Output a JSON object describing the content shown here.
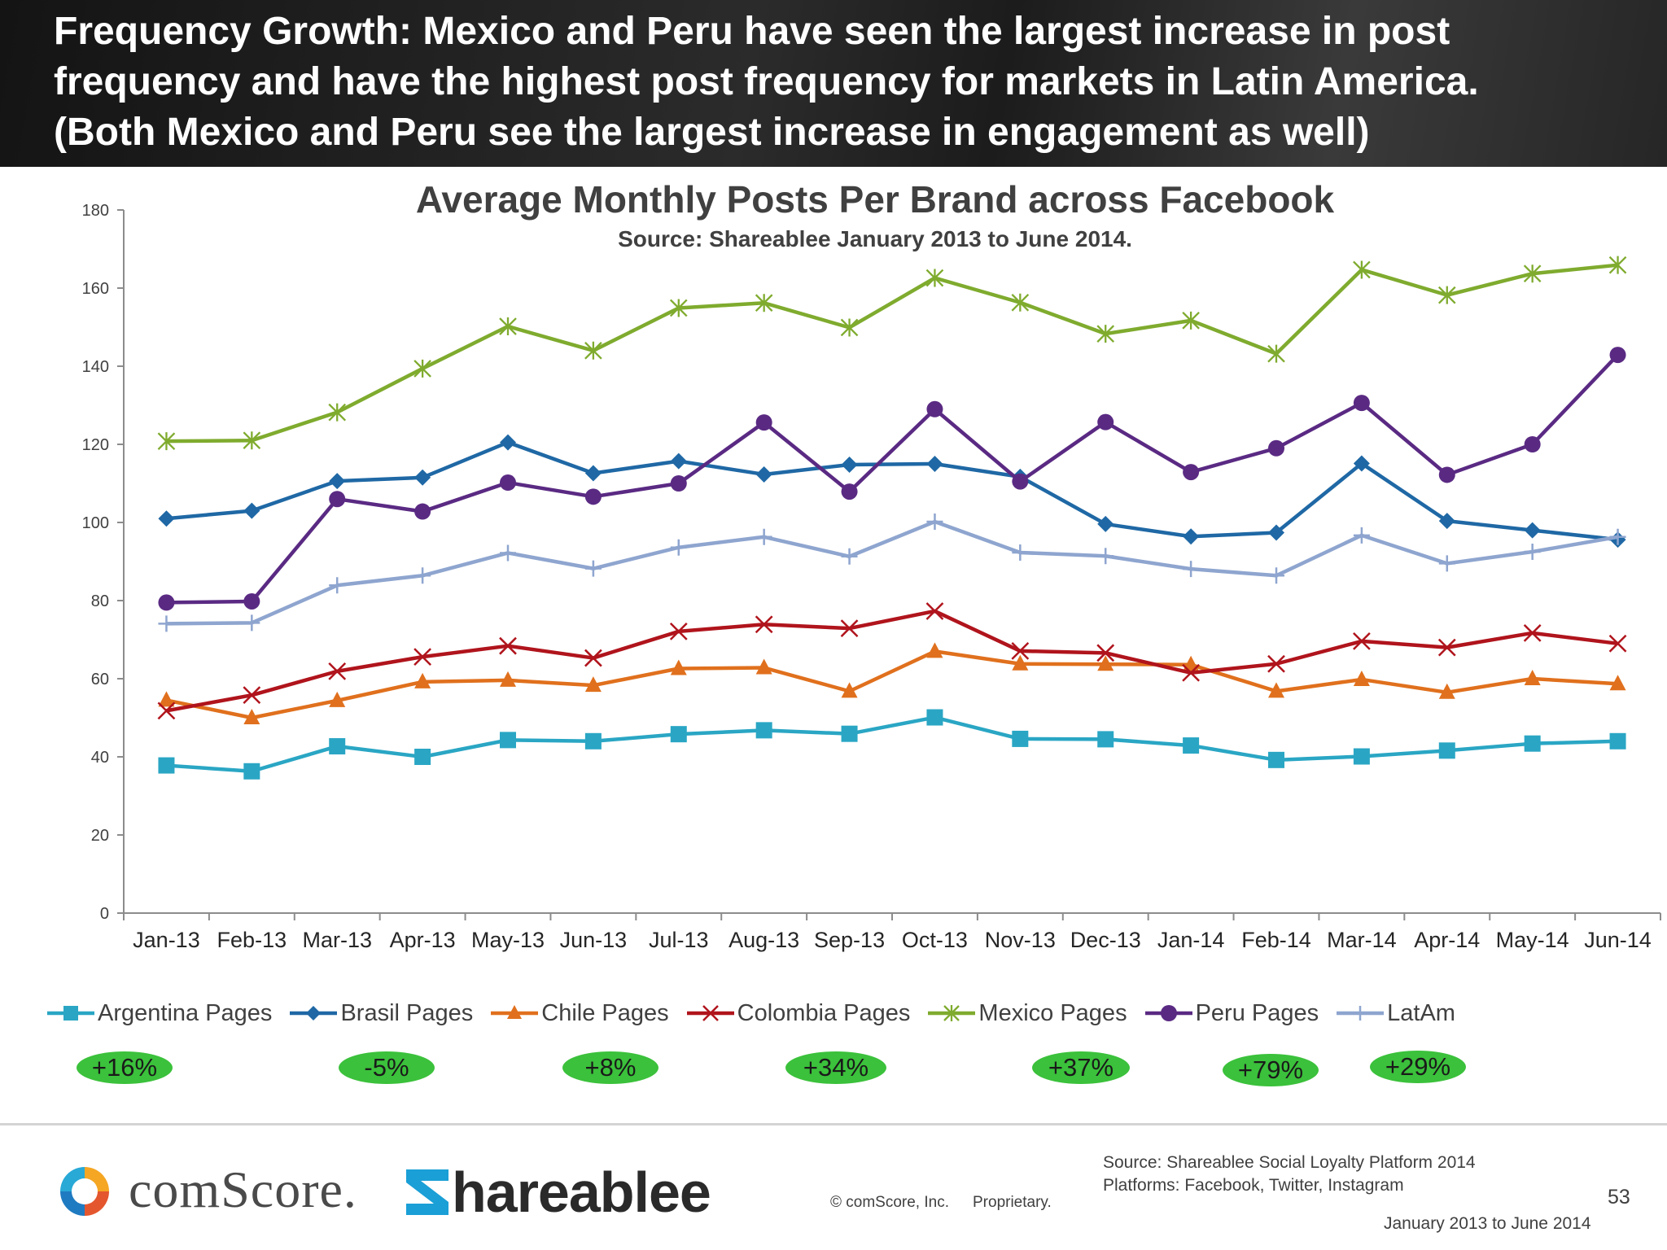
{
  "header": {
    "title": "Frequency Growth: Mexico and Peru have seen the largest increase in post\nfrequency and have the highest post frequency for markets in Latin America.\n(Both Mexico and Peru see the largest increase in engagement as well)"
  },
  "chart_data": {
    "type": "line",
    "title": "Average Monthly Posts Per Brand across Facebook",
    "subtitle": "Source: Shareablee January 2013 to June 2014.",
    "xlabel": "",
    "ylabel": "",
    "ylim": [
      0,
      180
    ],
    "yticks": [
      0,
      20,
      40,
      60,
      80,
      100,
      120,
      140,
      160,
      180
    ],
    "grid": false,
    "legend_position": "bottom",
    "categories": [
      "Jan-13",
      "Feb-13",
      "Mar-13",
      "Apr-13",
      "May-13",
      "Jun-13",
      "Jul-13",
      "Aug-13",
      "Sep-13",
      "Oct-13",
      "Nov-13",
      "Dec-13",
      "Jan-14",
      "Feb-14",
      "Mar-14",
      "Apr-14",
      "May-14",
      "Jun-14"
    ],
    "series": [
      {
        "name": "Argentina Pages",
        "color": "#2aa6c4",
        "marker": "square",
        "values": [
          37.8,
          36.3,
          42.7,
          40,
          44.3,
          44,
          45.8,
          46.8,
          45.9,
          50.1,
          44.6,
          44.5,
          42.9,
          39.2,
          40.1,
          41.6,
          43.4,
          44
        ]
      },
      {
        "name": "Brasil Pages",
        "color": "#1f68a5",
        "marker": "diamond",
        "values": [
          101,
          103,
          110.6,
          111.5,
          120.5,
          112.6,
          115.7,
          112.3,
          114.8,
          115,
          111.7,
          99.6,
          96.4,
          97.4,
          115.1,
          100.4,
          98,
          95.6
        ]
      },
      {
        "name": "Chile Pages",
        "color": "#e0701d",
        "marker": "triangle",
        "values": [
          54.5,
          50,
          54.4,
          59.2,
          59.6,
          58.3,
          62.6,
          62.8,
          56.8,
          67,
          63.8,
          63.7,
          63.6,
          56.8,
          59.8,
          56.5,
          60,
          58.7
        ]
      },
      {
        "name": "Colombia Pages",
        "color": "#b0141c",
        "marker": "x",
        "values": [
          51.8,
          55.8,
          61.9,
          65.6,
          68.4,
          65.3,
          72.1,
          73.9,
          72.9,
          77.3,
          67.1,
          66.6,
          61.5,
          63.8,
          69.6,
          68,
          71.7,
          69
        ]
      },
      {
        "name": "Mexico Pages",
        "color": "#7fab2e",
        "marker": "star",
        "values": [
          120.8,
          121,
          128.2,
          139.4,
          150.2,
          144,
          154.9,
          156.2,
          149.9,
          162.6,
          156.3,
          148.3,
          151.7,
          143.2,
          164.7,
          158.2,
          163.7,
          165.9
        ]
      },
      {
        "name": "Peru Pages",
        "color": "#5a2a83",
        "marker": "circle",
        "values": [
          79.5,
          79.8,
          106,
          102.8,
          110.2,
          106.6,
          110,
          125.6,
          107.9,
          129,
          110.5,
          125.7,
          112.9,
          119,
          130.6,
          112.2,
          120,
          142.9
        ]
      },
      {
        "name": "LatAm",
        "color": "#8ea5cf",
        "marker": "plus",
        "values": [
          74.1,
          74.3,
          83.9,
          86.4,
          92.2,
          88.2,
          93.6,
          96.3,
          91.3,
          100.2,
          92.3,
          91.4,
          88.1,
          86.4,
          96.7,
          89.5,
          92.5,
          96.3
        ]
      }
    ]
  },
  "badges": [
    "+16%",
    "-5%",
    "+8%",
    "+34%",
    "+37%",
    "+79%",
    "+29%"
  ],
  "footer": {
    "comscore_logo_text": "comScore.",
    "shareablee_logo_text": "hareablee",
    "copyright": "© comScore, Inc.",
    "proprietary": "Proprietary.",
    "source_line1": "Source: Shareablee Social Loyalty Platform 2014",
    "source_line2": "Platforms: Facebook, Twitter, Instagram",
    "page_number": "53",
    "date_range": "January 2013 to June 2014"
  }
}
